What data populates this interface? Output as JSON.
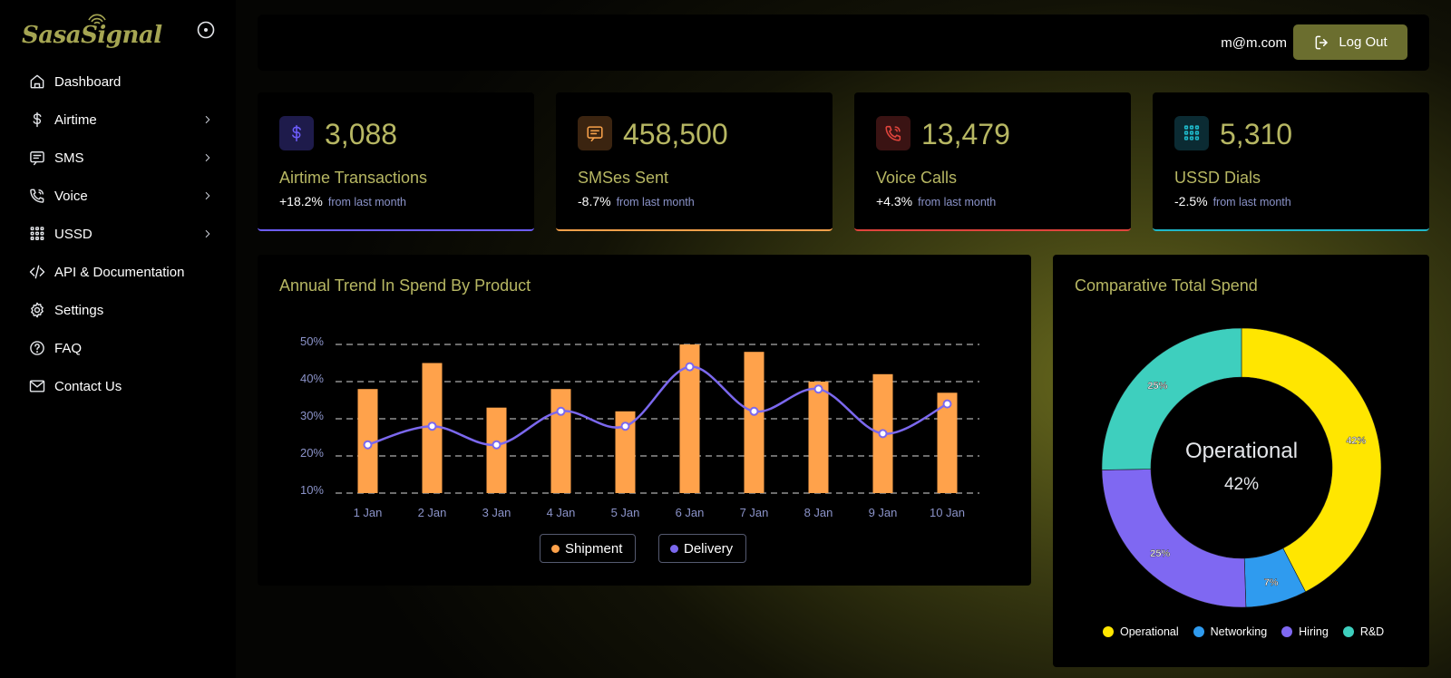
{
  "app": {
    "logo_text": "SasaSignal"
  },
  "topbar": {
    "email": "m@m.com",
    "logout_label": "Log Out"
  },
  "sidebar": {
    "items": [
      {
        "label": "Dashboard",
        "icon": "home-icon",
        "has_submenu": false
      },
      {
        "label": "Airtime",
        "icon": "dollar-icon",
        "has_submenu": true
      },
      {
        "label": "SMS",
        "icon": "message-icon",
        "has_submenu": true
      },
      {
        "label": "Voice",
        "icon": "phone-icon",
        "has_submenu": true
      },
      {
        "label": "USSD",
        "icon": "dialpad-icon",
        "has_submenu": true
      },
      {
        "label": "API & Documentation",
        "icon": "code-icon",
        "has_submenu": false
      },
      {
        "label": "Settings",
        "icon": "gear-icon",
        "has_submenu": false
      },
      {
        "label": "FAQ",
        "icon": "help-circle-icon",
        "has_submenu": false
      },
      {
        "label": "Contact Us",
        "icon": "mail-icon",
        "has_submenu": false
      }
    ]
  },
  "stats": [
    {
      "value": "3,088",
      "label": "Airtime Transactions",
      "change": "+18.2%",
      "change_note": "from last month",
      "icon": "dollar-icon",
      "accent": "#6d5dfc",
      "icon_bg": "#1e1b4b"
    },
    {
      "value": "458,500",
      "label": "SMSes Sent",
      "change": "-8.7%",
      "change_note": "from last month",
      "icon": "message-icon",
      "accent": "#f5a04a",
      "icon_bg": "#3b2410"
    },
    {
      "value": "13,479",
      "label": "Voice Calls",
      "change": "+4.3%",
      "change_note": "from last month",
      "icon": "phone-icon",
      "accent": "#e0443c",
      "icon_bg": "#3a1313"
    },
    {
      "value": "5,310",
      "label": "USSD Dials",
      "change": "-2.5%",
      "change_note": "from last month",
      "icon": "dialpad-icon",
      "accent": "#1fb8c9",
      "icon_bg": "#0b2b33"
    }
  ],
  "trend_chart": {
    "title": "Annual Trend In Spend By Product",
    "legend": [
      {
        "label": "Shipment",
        "color": "#ffa24b"
      },
      {
        "label": "Delivery",
        "color": "#7b68ee"
      }
    ]
  },
  "spend_chart": {
    "title": "Comparative Total Spend",
    "center_label": "Operational",
    "center_value": "42%"
  },
  "chart_data": [
    {
      "type": "bar",
      "title": "Annual Trend In Spend By Product",
      "categories": [
        "1 Jan",
        "2 Jan",
        "3 Jan",
        "4 Jan",
        "5 Jan",
        "6 Jan",
        "7 Jan",
        "8 Jan",
        "9 Jan",
        "10 Jan"
      ],
      "yticks": [
        "10%",
        "20%",
        "30%",
        "40%",
        "50%"
      ],
      "ylim": [
        10,
        50
      ],
      "series": [
        {
          "name": "Shipment",
          "type": "bar",
          "color": "#ffa24b",
          "values": [
            38,
            45,
            33,
            38,
            32,
            50,
            48,
            40,
            42,
            37
          ]
        },
        {
          "name": "Delivery",
          "type": "line",
          "color": "#7b68ee",
          "values": [
            23,
            28,
            23,
            32,
            28,
            44,
            32,
            38,
            26,
            34
          ]
        }
      ],
      "grid": true,
      "legend_position": "bottom"
    },
    {
      "type": "pie",
      "title": "Comparative Total Spend",
      "categories": [
        "Operational",
        "Networking",
        "Hiring",
        "R&D"
      ],
      "values": [
        42,
        7,
        25,
        25
      ],
      "labels": [
        "42%",
        "7%",
        "25%",
        "25%"
      ],
      "colors": [
        "#ffe600",
        "#2f9bef",
        "#7f68f2",
        "#3ecfbe"
      ],
      "legend_position": "bottom"
    }
  ]
}
